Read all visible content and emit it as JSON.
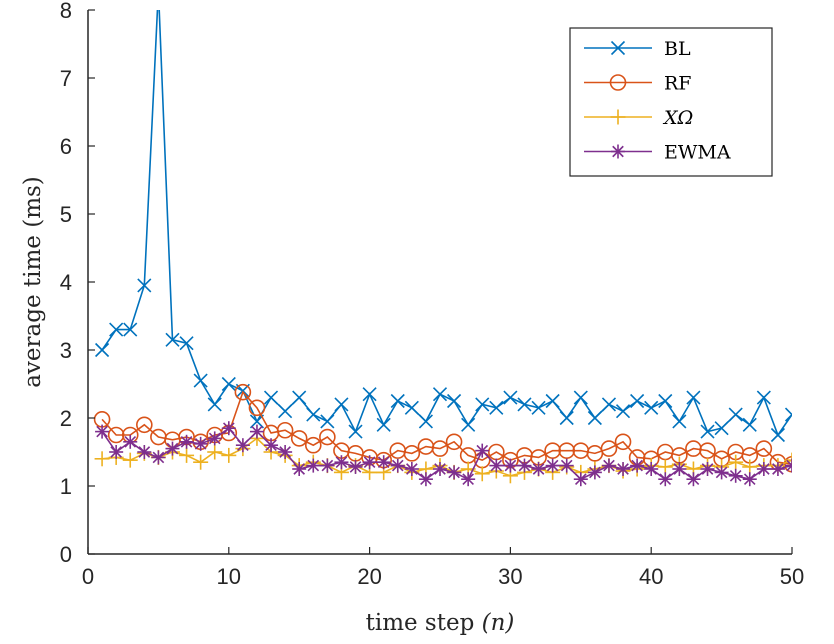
{
  "chart_data": {
    "type": "line",
    "title": "",
    "xlabel": "time step (n)",
    "xlabel_main": "time step ",
    "xlabel_var": "(n)",
    "ylabel": "average time (ms)",
    "xlim": [
      0,
      50
    ],
    "ylim": [
      0,
      8
    ],
    "xticks": [
      0,
      10,
      20,
      30,
      40,
      50
    ],
    "yticks": [
      0,
      1,
      2,
      3,
      4,
      5,
      6,
      7,
      8
    ],
    "grid": false,
    "legend_position": "top-right",
    "x": [
      1,
      2,
      3,
      4,
      5,
      6,
      7,
      8,
      9,
      10,
      11,
      12,
      13,
      14,
      15,
      16,
      17,
      18,
      19,
      20,
      21,
      22,
      23,
      24,
      25,
      26,
      27,
      28,
      29,
      30,
      31,
      32,
      33,
      34,
      35,
      36,
      37,
      38,
      39,
      40,
      41,
      42,
      43,
      44,
      45,
      46,
      47,
      48,
      49,
      50
    ],
    "series": [
      {
        "name": "BL",
        "color": "#0072BD",
        "marker": "x",
        "values": [
          3.0,
          3.3,
          3.3,
          3.95,
          8.3,
          3.15,
          3.1,
          2.55,
          2.2,
          2.5,
          2.4,
          1.95,
          2.3,
          2.1,
          2.3,
          2.05,
          1.95,
          2.2,
          1.8,
          2.35,
          1.9,
          2.25,
          2.15,
          1.95,
          2.35,
          2.25,
          1.9,
          2.2,
          2.15,
          2.3,
          2.2,
          2.15,
          2.25,
          2.0,
          2.3,
          2.0,
          2.2,
          2.1,
          2.25,
          2.15,
          2.25,
          1.95,
          2.3,
          1.8,
          1.85,
          2.05,
          1.9,
          2.3,
          1.75,
          2.05
        ]
      },
      {
        "name": "RF",
        "color": "#D95319",
        "marker": "o",
        "values": [
          1.98,
          1.75,
          1.75,
          1.9,
          1.72,
          1.68,
          1.72,
          1.65,
          1.75,
          1.78,
          2.38,
          2.15,
          1.78,
          1.82,
          1.7,
          1.6,
          1.72,
          1.52,
          1.48,
          1.42,
          1.38,
          1.52,
          1.48,
          1.58,
          1.55,
          1.65,
          1.45,
          1.38,
          1.5,
          1.38,
          1.45,
          1.42,
          1.52,
          1.52,
          1.52,
          1.48,
          1.55,
          1.65,
          1.42,
          1.4,
          1.5,
          1.45,
          1.55,
          1.52,
          1.4,
          1.5,
          1.45,
          1.55,
          1.35,
          1.32
        ]
      },
      {
        "name": "XΩ",
        "color": "#EDB120",
        "marker": "+",
        "values": [
          1.4,
          1.42,
          1.38,
          1.48,
          1.42,
          1.5,
          1.45,
          1.35,
          1.5,
          1.45,
          1.55,
          1.7,
          1.5,
          1.45,
          1.3,
          1.35,
          1.3,
          1.2,
          1.3,
          1.2,
          1.2,
          1.3,
          1.2,
          1.25,
          1.3,
          1.2,
          1.25,
          1.18,
          1.22,
          1.15,
          1.2,
          1.25,
          1.2,
          1.28,
          1.2,
          1.25,
          1.3,
          1.22,
          1.25,
          1.3,
          1.28,
          1.32,
          1.25,
          1.3,
          1.28,
          1.35,
          1.28,
          1.3,
          1.3,
          1.38
        ]
      },
      {
        "name": "EWMA",
        "color": "#7E2F8E",
        "marker": "*",
        "values": [
          1.8,
          1.5,
          1.65,
          1.5,
          1.42,
          1.55,
          1.65,
          1.62,
          1.7,
          1.85,
          1.6,
          1.8,
          1.6,
          1.5,
          1.25,
          1.3,
          1.3,
          1.35,
          1.28,
          1.35,
          1.35,
          1.3,
          1.25,
          1.1,
          1.25,
          1.2,
          1.1,
          1.52,
          1.3,
          1.3,
          1.3,
          1.25,
          1.3,
          1.3,
          1.1,
          1.2,
          1.3,
          1.25,
          1.3,
          1.25,
          1.1,
          1.25,
          1.1,
          1.25,
          1.2,
          1.15,
          1.1,
          1.25,
          1.25,
          1.3
        ]
      }
    ]
  }
}
